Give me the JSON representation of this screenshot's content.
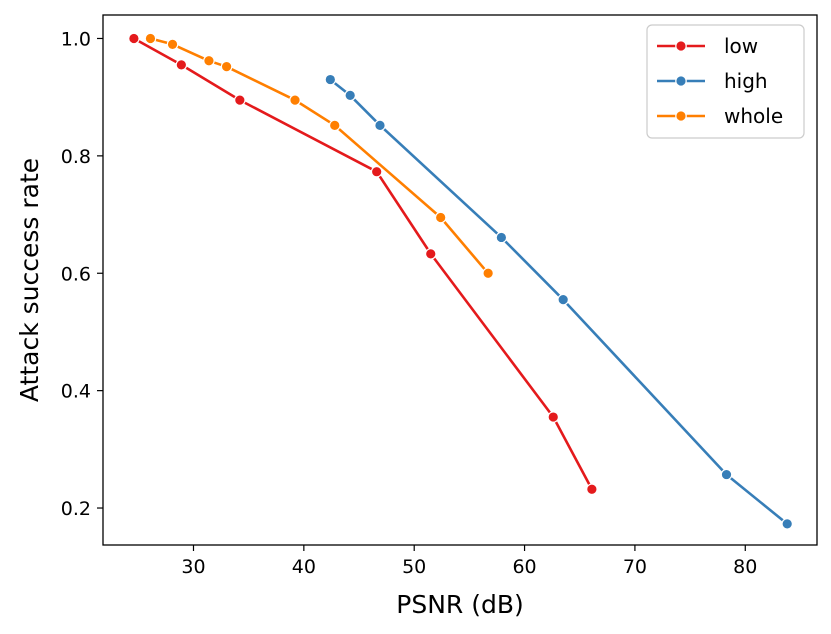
{
  "chart_data": {
    "type": "line",
    "title": "",
    "xlabel": "PSNR (dB)",
    "ylabel": "Attack success rate",
    "xlim": [
      21.8,
      86.5
    ],
    "ylim": [
      0.137,
      1.04
    ],
    "xticks": [
      30,
      40,
      50,
      60,
      70,
      80
    ],
    "yticks": [
      0.2,
      0.4,
      0.6,
      0.8,
      1.0
    ],
    "xtick_labels": [
      "30",
      "40",
      "50",
      "60",
      "70",
      "80"
    ],
    "ytick_labels": [
      "0.2",
      "0.4",
      "0.6",
      "0.8",
      "1.0"
    ],
    "grid": false,
    "legend_position": "top-right",
    "series": [
      {
        "name": "low",
        "color": "#e41a1c",
        "x": [
          24.6,
          28.9,
          34.2,
          46.6,
          51.5,
          62.6,
          66.1
        ],
        "y": [
          1.0,
          0.955,
          0.895,
          0.773,
          0.633,
          0.355,
          0.232
        ]
      },
      {
        "name": "high",
        "color": "#377eb8",
        "x": [
          42.4,
          44.2,
          46.9,
          57.9,
          63.5,
          78.3,
          83.8
        ],
        "y": [
          0.93,
          0.903,
          0.852,
          0.661,
          0.555,
          0.257,
          0.173
        ]
      },
      {
        "name": "whole",
        "color": "#ff7f00",
        "x": [
          26.1,
          28.1,
          31.4,
          33.0,
          39.2,
          42.8,
          52.4,
          56.7
        ],
        "y": [
          1.0,
          0.99,
          0.962,
          0.952,
          0.895,
          0.852,
          0.695,
          0.6
        ]
      }
    ]
  }
}
